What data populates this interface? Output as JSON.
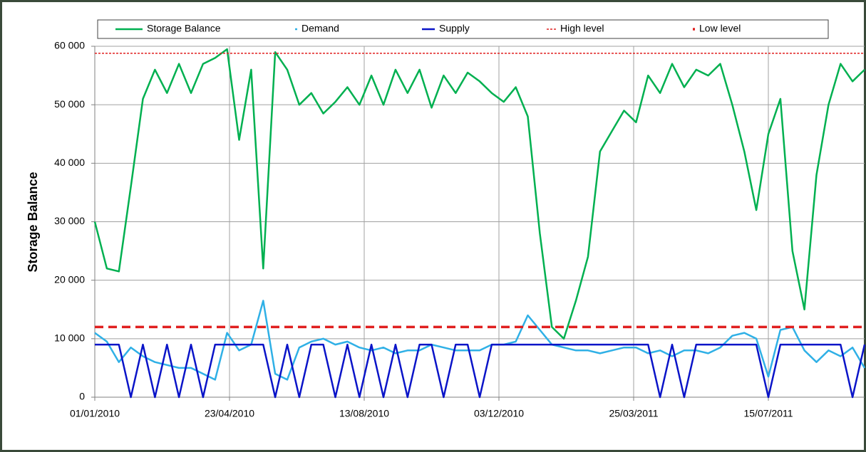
{
  "chart_data": {
    "type": "line",
    "y_label": "Storage  Balance",
    "x": [
      "2010-01-01",
      "2010-01-11",
      "2010-01-21",
      "2010-01-31",
      "2010-02-10",
      "2010-02-20",
      "2010-03-02",
      "2010-03-12",
      "2010-03-22",
      "2010-04-01",
      "2010-04-11",
      "2010-04-21",
      "2010-05-01",
      "2010-05-11",
      "2010-05-21",
      "2010-05-31",
      "2010-06-10",
      "2010-06-20",
      "2010-06-30",
      "2010-07-10",
      "2010-07-20",
      "2010-07-30",
      "2010-08-09",
      "2010-08-19",
      "2010-08-29",
      "2010-09-08",
      "2010-09-18",
      "2010-09-28",
      "2010-10-08",
      "2010-10-18",
      "2010-10-28",
      "2010-11-07",
      "2010-11-17",
      "2010-11-27",
      "2010-12-07",
      "2010-12-17",
      "2010-12-27",
      "2011-01-06",
      "2011-01-16",
      "2011-01-26",
      "2011-02-05",
      "2011-02-15",
      "2011-02-25",
      "2011-03-07",
      "2011-03-17",
      "2011-03-27",
      "2011-04-06",
      "2011-04-16",
      "2011-04-26",
      "2011-05-06",
      "2011-05-16",
      "2011-05-26",
      "2011-06-05",
      "2011-06-15",
      "2011-06-25",
      "2011-07-05",
      "2011-07-15",
      "2011-07-25",
      "2011-08-04",
      "2011-08-14",
      "2011-08-24",
      "2011-09-03",
      "2011-09-13",
      "2011-09-23",
      "2011-10-03"
    ],
    "series": [
      {
        "name": "Storage  Balance",
        "color": "#00b050",
        "width": 2.5,
        "values": [
          30000,
          22000,
          21500,
          36000,
          51000,
          56000,
          52000,
          57000,
          52000,
          57000,
          58000,
          59500,
          44000,
          56000,
          22000,
          59000,
          56000,
          50000,
          52000,
          48500,
          50500,
          53000,
          50000,
          55000,
          50000,
          56000,
          52000,
          56000,
          49500,
          55000,
          52000,
          55500,
          54000,
          52000,
          50500,
          53000,
          48000,
          28000,
          12000,
          10000,
          16500,
          24000,
          42000,
          45500,
          49000,
          47000,
          55000,
          52000,
          57000,
          53000,
          56000,
          55000,
          57000,
          50000,
          42000,
          32000,
          45000,
          51000,
          25000,
          15000,
          38000,
          50000,
          57000,
          54000,
          56000
        ]
      },
      {
        "name": "Demand",
        "color": "#2fb0e6",
        "width": 2.5,
        "values": [
          11000,
          9500,
          6000,
          8500,
          7000,
          6000,
          5500,
          5000,
          5000,
          4000,
          3000,
          11000,
          8000,
          9000,
          16500,
          4000,
          3000,
          8500,
          9500,
          10000,
          9000,
          9500,
          8500,
          8000,
          8500,
          7500,
          8000,
          8000,
          9000,
          8500,
          8000,
          8000,
          8000,
          9000,
          9000,
          9500,
          14000,
          11500,
          9000,
          8500,
          8000,
          8000,
          7500,
          8000,
          8500,
          8500,
          7500,
          8000,
          7000,
          8000,
          8000,
          7500,
          8500,
          10500,
          11000,
          10000,
          3500,
          11500,
          12000,
          8000,
          6000,
          8000,
          7000,
          8500,
          5000
        ]
      },
      {
        "name": "Supply",
        "color": "#0a14c8",
        "width": 2.5,
        "values": [
          9000,
          9000,
          9000,
          0,
          9000,
          0,
          9000,
          0,
          9000,
          0,
          9000,
          9000,
          9000,
          9000,
          9000,
          0,
          9000,
          0,
          9000,
          9000,
          0,
          9000,
          0,
          9000,
          0,
          9000,
          0,
          9000,
          9000,
          0,
          9000,
          9000,
          0,
          9000,
          9000,
          9000,
          9000,
          9000,
          9000,
          9000,
          9000,
          9000,
          9000,
          9000,
          9000,
          9000,
          9000,
          0,
          9000,
          0,
          9000,
          9000,
          9000,
          9000,
          9000,
          9000,
          0,
          9000,
          9000,
          9000,
          9000,
          9000,
          9000,
          0,
          9000
        ]
      }
    ],
    "reference_lines": [
      {
        "name": "High level",
        "value": 58800,
        "color": "#e02020",
        "width": 1.5,
        "dash": "3 2"
      },
      {
        "name": "Low level",
        "value": 12000,
        "color": "#e02020",
        "width": 3.5,
        "dash": "12 7"
      }
    ],
    "xlim": [
      "2010-01-01",
      "2011-10-03"
    ],
    "xticks": [
      {
        "value": "2010-01-01",
        "label": "01/01/2010"
      },
      {
        "value": "2010-04-23",
        "label": "23/04/2010"
      },
      {
        "value": "2010-08-13",
        "label": "13/08/2010"
      },
      {
        "value": "2010-12-03",
        "label": "03/12/2010"
      },
      {
        "value": "2011-03-25",
        "label": "25/03/2011"
      },
      {
        "value": "2011-07-15",
        "label": "15/07/2011"
      }
    ],
    "ylim": [
      0,
      60000
    ],
    "yticks": [
      0,
      {
        "value": 10000,
        "label": "10 000"
      },
      {
        "value": 20000,
        "label": "20 000"
      },
      {
        "value": 30000,
        "label": "30 000"
      },
      {
        "value": 40000,
        "label": "40 000"
      },
      {
        "value": 50000,
        "label": "50 000"
      },
      {
        "value": 60000,
        "label": "60 000"
      }
    ],
    "grid": true
  }
}
